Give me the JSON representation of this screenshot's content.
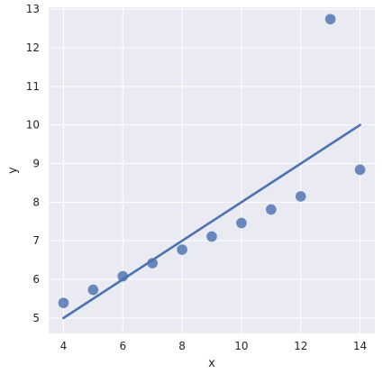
{
  "chart_data": {
    "type": "scatter",
    "xlabel": "x",
    "ylabel": "y",
    "xlim": [
      3.5,
      14.5
    ],
    "ylim": [
      4.6,
      13.05
    ],
    "xticks": [
      4,
      6,
      8,
      10,
      12,
      14
    ],
    "yticks": [
      5,
      6,
      7,
      8,
      9,
      10,
      11,
      12,
      13
    ],
    "grid": true,
    "series": [
      {
        "x": [
          4,
          5,
          6,
          7,
          8,
          9,
          10,
          11,
          12,
          13,
          14
        ],
        "y": [
          5.39,
          5.73,
          6.08,
          6.42,
          6.77,
          7.11,
          7.46,
          7.81,
          8.15,
          12.74,
          8.84
        ]
      }
    ],
    "fit_line": {
      "x": [
        4,
        14
      ],
      "y": [
        5.0,
        10.0
      ]
    },
    "colors": {
      "background": "#eaeaf2",
      "grid": "#ffffff",
      "points": "#4c72b0",
      "line": "#4c72b0"
    }
  }
}
